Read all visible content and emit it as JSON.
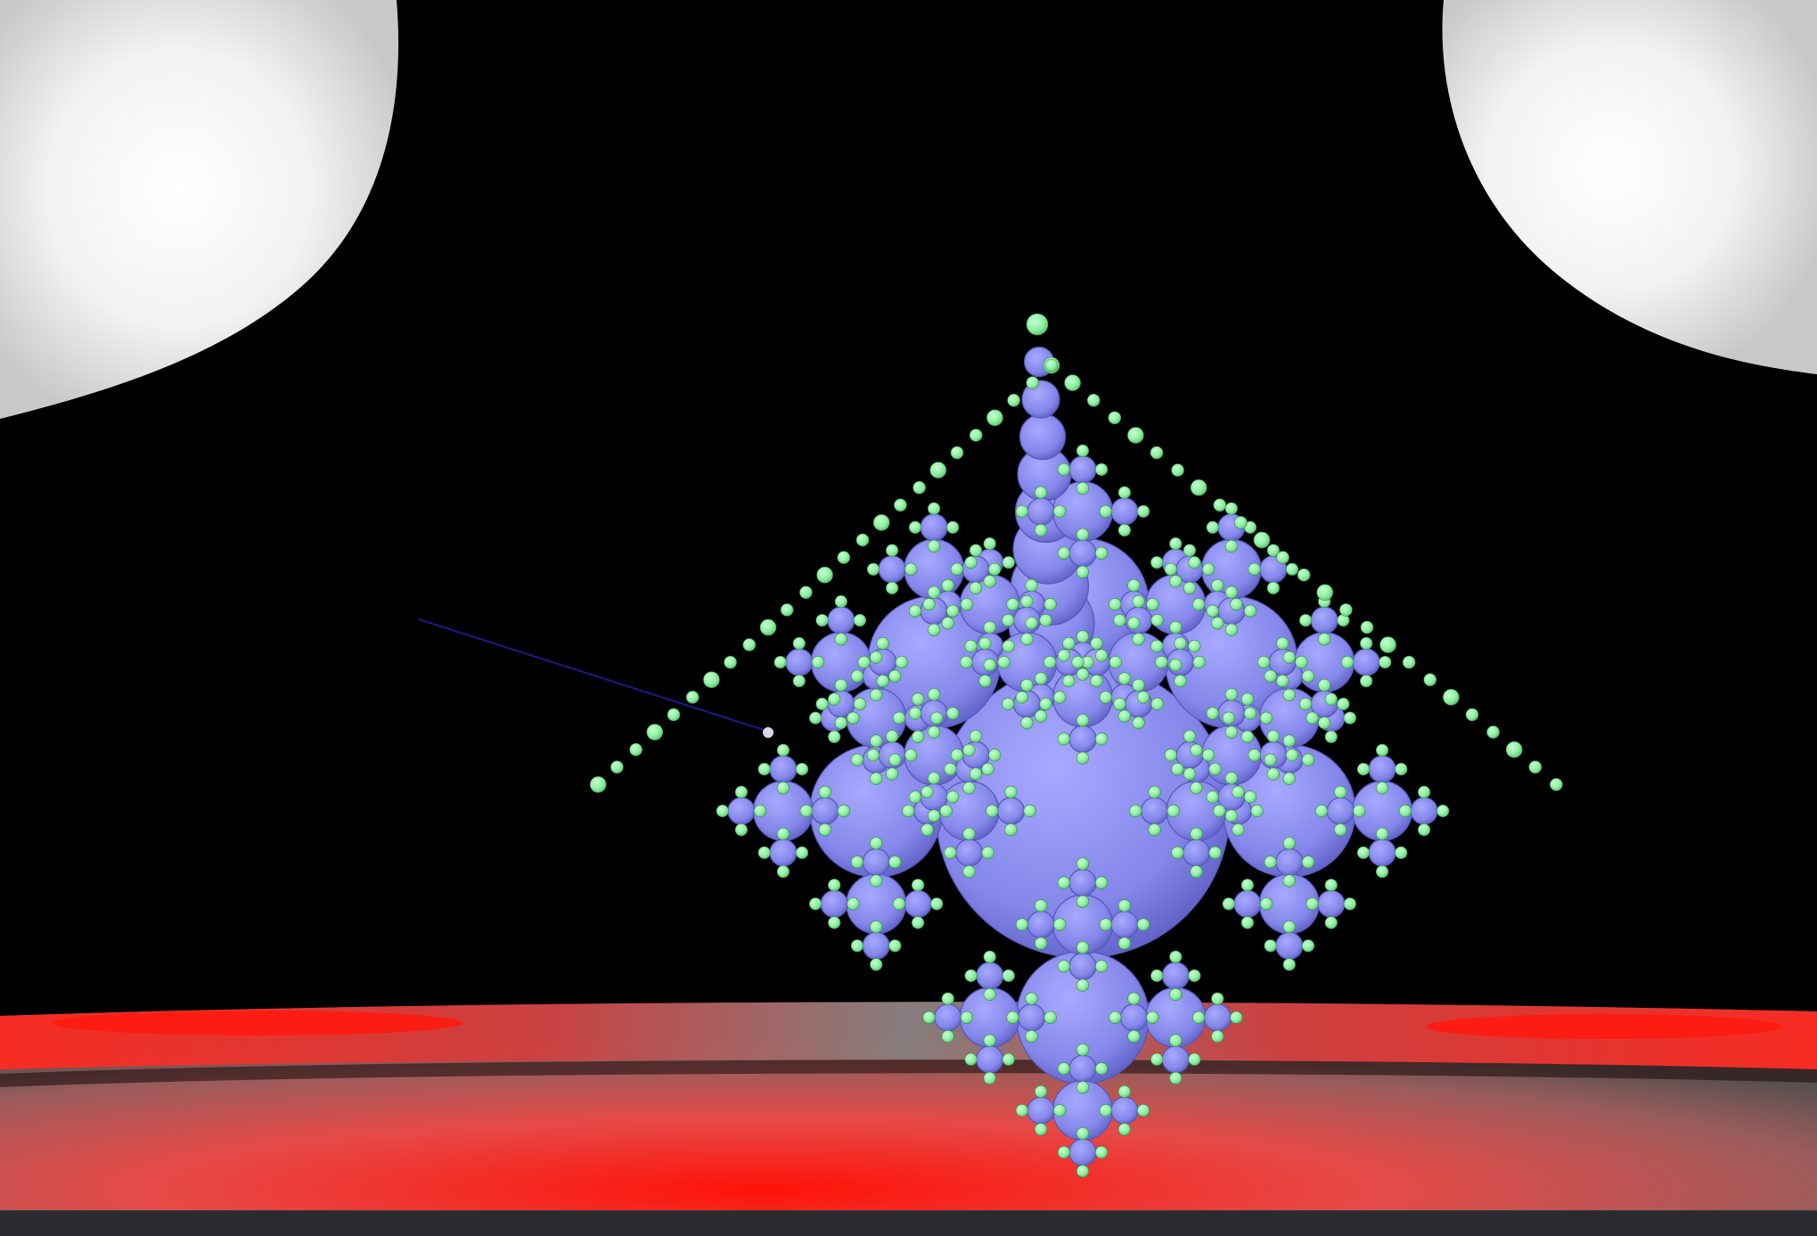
{
  "scene": {
    "background_color": "#000000",
    "light_color": "#ffffff",
    "floor_color": "#ff1a10",
    "floor_shadow_color": "#7a7a7a",
    "large_sphere_color": "#8a8cf0",
    "small_sphere_color": "#8ef0a0",
    "pointer_ray_color": "#1a1a8a",
    "object": "sphereflake-fractal",
    "fractal_depth": 4
  },
  "status_bar": {
    "color": "#2a2b2e"
  }
}
